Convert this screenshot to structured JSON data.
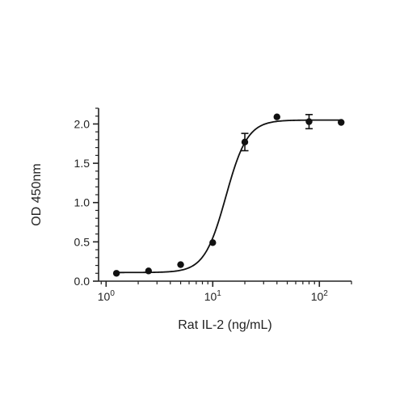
{
  "chart_data": {
    "type": "scatter",
    "xlabel": "Rat IL-2 (ng/mL)",
    "ylabel": "OD 450nm",
    "x_scale": "log10",
    "xlim": [
      0.85,
      200
    ],
    "ylim": [
      0.0,
      2.2
    ],
    "x_ticks": [
      {
        "value": 1,
        "base": "10",
        "exp": "0"
      },
      {
        "value": 10,
        "base": "10",
        "exp": "1"
      },
      {
        "value": 100,
        "base": "10",
        "exp": "2"
      }
    ],
    "y_ticks": [
      {
        "value": 0.0,
        "label": "0.0"
      },
      {
        "value": 0.5,
        "label": "0.5"
      },
      {
        "value": 1.0,
        "label": "1.0"
      },
      {
        "value": 1.5,
        "label": "1.5"
      },
      {
        "value": 2.0,
        "label": "2.0"
      }
    ],
    "points": [
      {
        "x": 1.25,
        "y": 0.1,
        "err": 0
      },
      {
        "x": 2.5,
        "y": 0.13,
        "err": 0
      },
      {
        "x": 5,
        "y": 0.21,
        "err": 0
      },
      {
        "x": 10,
        "y": 0.49,
        "err": 0
      },
      {
        "x": 20,
        "y": 1.77,
        "err": 0.11
      },
      {
        "x": 40,
        "y": 2.09,
        "err": 0
      },
      {
        "x": 80,
        "y": 2.03,
        "err": 0.09
      },
      {
        "x": 160,
        "y": 2.02,
        "err": 0
      }
    ],
    "fit_curve": {
      "type": "4PL",
      "bottom": 0.11,
      "top": 2.05,
      "ec50": 13.3,
      "hill": 4.3,
      "x_range": [
        1.25,
        160
      ]
    },
    "grid": false,
    "legend": "none",
    "colors": {
      "marker": "#111111",
      "line": "#111111",
      "axis": "#222222"
    }
  }
}
